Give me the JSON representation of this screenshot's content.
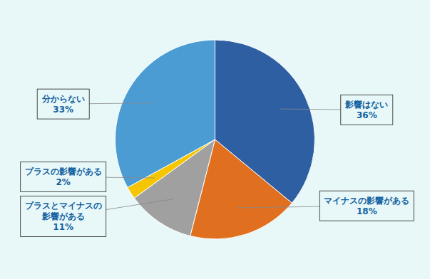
{
  "chart_data": {
    "type": "pie",
    "categories": [
      "影響はない",
      "マイナスの影響がある",
      "プラスとマイナスの\n影響がある",
      "プラスの影響がある",
      "分からない"
    ],
    "values": [
      36,
      18,
      11,
      2,
      33
    ],
    "value_labels": [
      "36%",
      "18%",
      "11%",
      "2%",
      "33%"
    ],
    "colors": [
      "#2E5FA3",
      "#E07020",
      "#A0A0A0",
      "#F5C500",
      "#4B9CD3"
    ],
    "data_labels": true
  }
}
